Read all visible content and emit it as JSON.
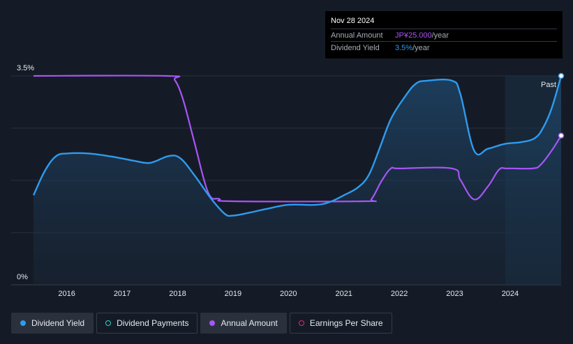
{
  "tooltip": {
    "date": "Nov 28 2024",
    "annual_amount_label": "Annual Amount",
    "annual_amount_value": "JP¥25.000",
    "annual_amount_unit": "/year",
    "dividend_yield_label": "Dividend Yield",
    "dividend_yield_value": "3.5%",
    "dividend_yield_unit": "/year"
  },
  "past_label": "Past",
  "legend": [
    {
      "label": "Dividend Yield",
      "color": "#2f9bef",
      "filled": true,
      "active": true
    },
    {
      "label": "Dividend Payments",
      "color": "#2dd4bf",
      "filled": false,
      "active": false
    },
    {
      "label": "Annual Amount",
      "color": "#a855f7",
      "filled": true,
      "active": true
    },
    {
      "label": "Earnings Per Share",
      "color": "#db2777",
      "filled": false,
      "active": false
    }
  ],
  "chart_data": {
    "type": "line",
    "x_tick_labels": [
      "2016",
      "2017",
      "2018",
      "2019",
      "2020",
      "2021",
      "2022",
      "2023",
      "2024"
    ],
    "y_tick_labels": [
      "3.5%",
      "0%"
    ],
    "ylim": [
      0,
      3.5
    ],
    "xlim": [
      2015.4,
      2024.92
    ],
    "series": [
      {
        "name": "Dividend Yield",
        "color": "#2f9bef",
        "unit": "%",
        "points": [
          [
            2015.4,
            1.5
          ],
          [
            2015.6,
            1.9
          ],
          [
            2015.8,
            2.15
          ],
          [
            2016.0,
            2.2
          ],
          [
            2016.4,
            2.2
          ],
          [
            2016.8,
            2.15
          ],
          [
            2017.2,
            2.08
          ],
          [
            2017.45,
            2.04
          ],
          [
            2017.6,
            2.07
          ],
          [
            2017.85,
            2.16
          ],
          [
            2018.05,
            2.12
          ],
          [
            2018.3,
            1.84
          ],
          [
            2018.6,
            1.45
          ],
          [
            2018.85,
            1.19
          ],
          [
            2019.0,
            1.16
          ],
          [
            2019.3,
            1.21
          ],
          [
            2019.6,
            1.27
          ],
          [
            2020.0,
            1.34
          ],
          [
            2020.5,
            1.34
          ],
          [
            2020.75,
            1.39
          ],
          [
            2021.0,
            1.5
          ],
          [
            2021.25,
            1.63
          ],
          [
            2021.45,
            1.84
          ],
          [
            2021.65,
            2.3
          ],
          [
            2021.85,
            2.78
          ],
          [
            2022.1,
            3.15
          ],
          [
            2022.3,
            3.37
          ],
          [
            2022.5,
            3.42
          ],
          [
            2022.95,
            3.42
          ],
          [
            2023.1,
            3.2
          ],
          [
            2023.35,
            2.25
          ],
          [
            2023.6,
            2.28
          ],
          [
            2023.9,
            2.36
          ],
          [
            2024.2,
            2.39
          ],
          [
            2024.45,
            2.46
          ],
          [
            2024.6,
            2.64
          ],
          [
            2024.75,
            2.96
          ],
          [
            2024.92,
            3.5
          ]
        ]
      },
      {
        "name": "Annual Amount",
        "color": "#a855f7",
        "unit": "JP¥",
        "ylim": [
          0,
          35
        ],
        "points": [
          [
            2015.4,
            35
          ],
          [
            2017.8,
            35
          ],
          [
            2017.95,
            34.3
          ],
          [
            2018.1,
            31
          ],
          [
            2018.3,
            24
          ],
          [
            2018.55,
            15.5
          ],
          [
            2018.75,
            14.4
          ],
          [
            2019.0,
            14
          ],
          [
            2021.35,
            14
          ],
          [
            2021.5,
            14.4
          ],
          [
            2021.68,
            17.4
          ],
          [
            2021.85,
            19.5
          ],
          [
            2022.0,
            19.5
          ],
          [
            2022.95,
            19.5
          ],
          [
            2023.1,
            17.6
          ],
          [
            2023.35,
            14.3
          ],
          [
            2023.6,
            16.5
          ],
          [
            2023.8,
            19.3
          ],
          [
            2023.95,
            19.5
          ],
          [
            2024.4,
            19.5
          ],
          [
            2024.55,
            20.1
          ],
          [
            2024.75,
            22.5
          ],
          [
            2024.92,
            25
          ]
        ]
      }
    ],
    "grid": true,
    "shaded_region": {
      "from": 2023.91,
      "to": 2024.92,
      "label": "Past"
    }
  }
}
